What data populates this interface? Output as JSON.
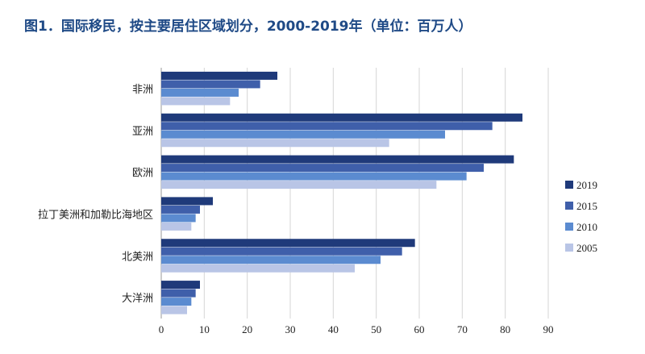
{
  "chart_data": {
    "type": "bar",
    "orientation": "horizontal",
    "title": "图1．国际移民，按主要居住区域划分，2000-2019年（单位：百万人）",
    "categories": [
      "非洲",
      "亚洲",
      "欧洲",
      "拉丁美洲和加勒比海地区",
      "北美洲",
      "大洋洲"
    ],
    "series": [
      {
        "name": "2019",
        "color": "#1f3a7a",
        "values": [
          27,
          84,
          82,
          12,
          59,
          9
        ]
      },
      {
        "name": "2015",
        "color": "#3f5faa",
        "values": [
          23,
          77,
          75,
          9,
          56,
          8
        ]
      },
      {
        "name": "2010",
        "color": "#5b8bd0",
        "values": [
          18,
          66,
          71,
          8,
          51,
          7
        ]
      },
      {
        "name": "2005",
        "color": "#b9c5e6",
        "values": [
          16,
          53,
          64,
          7,
          45,
          6
        ]
      }
    ],
    "xlim": [
      0,
      90
    ],
    "xticks": [
      0,
      10,
      20,
      30,
      40,
      50,
      60,
      70,
      80,
      90
    ],
    "grid": true,
    "legend_position": "right"
  }
}
